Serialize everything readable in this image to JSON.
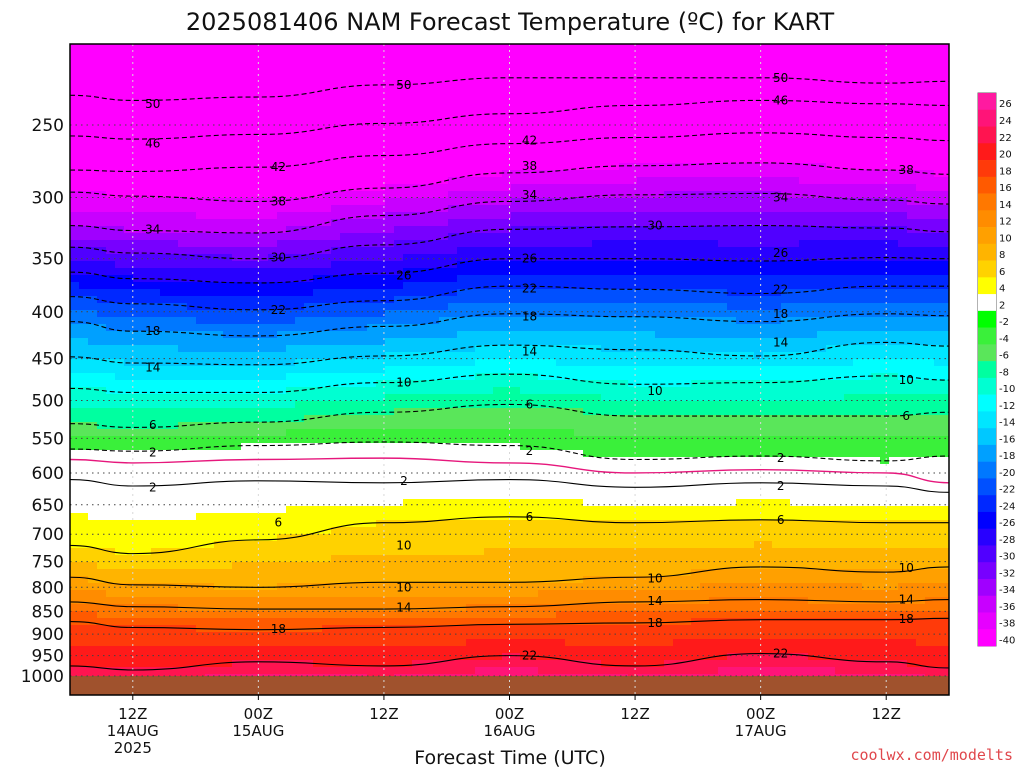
{
  "chart_data": {
    "type": "heatmap",
    "title": "2025081406 NAM Forecast Temperature (ºC) for KART",
    "xlabel": "Forecast Time (UTC)",
    "ylabel": "",
    "credit": "coolwx.com/modelts",
    "y_scale": "log-pressure",
    "y_range": [
      1000,
      200
    ],
    "y_ticks": [
      250,
      300,
      350,
      400,
      450,
      500,
      550,
      600,
      650,
      700,
      750,
      800,
      850,
      900,
      950,
      1000
    ],
    "x_ticks": [
      {
        "time": "2025-08-14T12Z",
        "lines": [
          "12Z",
          "14AUG",
          "2025"
        ]
      },
      {
        "time": "2025-08-15T00Z",
        "lines": [
          "00Z",
          "15AUG"
        ]
      },
      {
        "time": "2025-08-15T12Z",
        "lines": [
          "12Z"
        ]
      },
      {
        "time": "2025-08-16T00Z",
        "lines": [
          "00Z",
          "16AUG"
        ]
      },
      {
        "time": "2025-08-16T12Z",
        "lines": [
          "12Z"
        ]
      },
      {
        "time": "2025-08-17T00Z",
        "lines": [
          "00Z",
          "17AUG"
        ]
      },
      {
        "time": "2025-08-17T12Z",
        "lines": [
          "12Z"
        ]
      }
    ],
    "x_range": [
      "2025-08-14T06Z",
      "2025-08-17T18Z"
    ],
    "grid": true,
    "ground": {
      "below_pressure": 1000,
      "color": "#a0522d"
    },
    "colorbar": {
      "position": "right",
      "ticks": [
        "26",
        "24",
        "22",
        "20",
        "18",
        "16",
        "14",
        "12",
        "10",
        "8",
        "6",
        "4",
        "2",
        "-2",
        "-4",
        "-6",
        "-8",
        "-10",
        "-12",
        "-14",
        "-16",
        "-18",
        "-20",
        "-22",
        "-24",
        "-26",
        "-28",
        "-30",
        "-32",
        "-34",
        "-36",
        "-38",
        "-40"
      ],
      "colors": [
        "#ff1aa0",
        "#ff1478",
        "#ff1450",
        "#ff1a1a",
        "#ff3a0a",
        "#ff5a00",
        "#ff7800",
        "#ff8c00",
        "#ffa000",
        "#ffb400",
        "#ffd200",
        "#ffff00",
        "#ffffff",
        "#00ff00",
        "#3af03a",
        "#5ae65a",
        "#00ffa0",
        "#00ffd2",
        "#00ffff",
        "#00e6ff",
        "#00c8ff",
        "#00a0ff",
        "#0078ff",
        "#0050ff",
        "#0028ff",
        "#0000ff",
        "#2800ff",
        "#5000ff",
        "#7800ff",
        "#a000ff",
        "#c800ff",
        "#e600ff",
        "#ff00ff"
      ]
    },
    "series": [
      {
        "name": "",
        "level": -50,
        "style": "dashed",
        "x": [
          "2025-08-14T06Z",
          "2025-08-14T12Z",
          "2025-08-15T00Z",
          "2025-08-15T12Z",
          "2025-08-16T00Z",
          "2025-08-16T12Z",
          "2025-08-17T00Z",
          "2025-08-17T12Z",
          "2025-08-17T18Z"
        ],
        "y": [
          232,
          235,
          233,
          226,
          222,
          222,
          222,
          225,
          224
        ]
      },
      {
        "name": "",
        "level": -46,
        "style": "dashed",
        "x": [
          "2025-08-14T06Z",
          "2025-08-14T12Z",
          "2025-08-15T00Z",
          "2025-08-15T12Z",
          "2025-08-16T00Z",
          "2025-08-16T12Z",
          "2025-08-17T00Z",
          "2025-08-17T12Z",
          "2025-08-17T18Z"
        ],
        "y": [
          257,
          259,
          256,
          249,
          243,
          238,
          235,
          237,
          238
        ]
      },
      {
        "name": "",
        "level": -42,
        "style": "dashed",
        "x": [
          "2025-08-14T06Z",
          "2025-08-14T12Z",
          "2025-08-15T00Z",
          "2025-08-15T12Z",
          "2025-08-16T00Z",
          "2025-08-16T12Z",
          "2025-08-17T00Z",
          "2025-08-17T12Z",
          "2025-08-17T18Z"
        ],
        "y": [
          280,
          281,
          278,
          270,
          262,
          258,
          255,
          258,
          260
        ]
      },
      {
        "name": "",
        "level": -38,
        "style": "dashed",
        "x": [
          "2025-08-14T06Z",
          "2025-08-14T12Z",
          "2025-08-15T00Z",
          "2025-08-15T12Z",
          "2025-08-16T00Z",
          "2025-08-16T12Z",
          "2025-08-17T00Z",
          "2025-08-17T12Z",
          "2025-08-17T18Z"
        ],
        "y": [
          296,
          299,
          303,
          293,
          282,
          277,
          275,
          280,
          283
        ]
      },
      {
        "name": "",
        "level": -34,
        "style": "dashed",
        "x": [
          "2025-08-14T06Z",
          "2025-08-14T12Z",
          "2025-08-15T00Z",
          "2025-08-15T12Z",
          "2025-08-16T00Z",
          "2025-08-16T12Z",
          "2025-08-17T00Z",
          "2025-08-17T12Z",
          "2025-08-17T18Z"
        ],
        "y": [
          322,
          326,
          328,
          314,
          303,
          298,
          297,
          302,
          305
        ]
      },
      {
        "name": "",
        "level": -30,
        "style": "dashed",
        "x": [
          "2025-08-14T06Z",
          "2025-08-14T12Z",
          "2025-08-15T00Z",
          "2025-08-15T12Z",
          "2025-08-16T00Z",
          "2025-08-16T12Z",
          "2025-08-17T00Z",
          "2025-08-17T12Z",
          "2025-08-17T18Z"
        ],
        "y": [
          340,
          345,
          350,
          338,
          325,
          323,
          322,
          324,
          327
        ]
      },
      {
        "name": "",
        "level": -26,
        "style": "dashed",
        "x": [
          "2025-08-14T06Z",
          "2025-08-14T12Z",
          "2025-08-15T00Z",
          "2025-08-15T12Z",
          "2025-08-16T00Z",
          "2025-08-16T12Z",
          "2025-08-17T00Z",
          "2025-08-17T12Z",
          "2025-08-17T18Z"
        ],
        "y": [
          362,
          368,
          372,
          363,
          350,
          350,
          352,
          349,
          350
        ]
      },
      {
        "name": "",
        "level": -22,
        "style": "dashed",
        "x": [
          "2025-08-14T06Z",
          "2025-08-14T12Z",
          "2025-08-15T00Z",
          "2025-08-15T12Z",
          "2025-08-16T00Z",
          "2025-08-16T12Z",
          "2025-08-17T00Z",
          "2025-08-17T12Z",
          "2025-08-17T18Z"
        ],
        "y": [
          385,
          392,
          398,
          389,
          375,
          378,
          382,
          375,
          375
        ]
      },
      {
        "name": "",
        "level": -18,
        "style": "dashed",
        "x": [
          "2025-08-14T06Z",
          "2025-08-14T12Z",
          "2025-08-15T00Z",
          "2025-08-15T12Z",
          "2025-08-16T00Z",
          "2025-08-16T12Z",
          "2025-08-17T00Z",
          "2025-08-17T12Z",
          "2025-08-17T18Z"
        ],
        "y": [
          410,
          420,
          425,
          415,
          402,
          405,
          410,
          402,
          404
        ]
      },
      {
        "name": "",
        "level": -14,
        "style": "dashed",
        "x": [
          "2025-08-14T06Z",
          "2025-08-14T12Z",
          "2025-08-15T00Z",
          "2025-08-15T12Z",
          "2025-08-16T00Z",
          "2025-08-16T12Z",
          "2025-08-17T00Z",
          "2025-08-17T12Z",
          "2025-08-17T18Z"
        ],
        "y": [
          448,
          455,
          457,
          447,
          435,
          440,
          447,
          432,
          436
        ]
      },
      {
        "name": "",
        "level": -10,
        "style": "dashed",
        "x": [
          "2025-08-14T06Z",
          "2025-08-14T12Z",
          "2025-08-15T00Z",
          "2025-08-15T12Z",
          "2025-08-16T00Z",
          "2025-08-16T12Z",
          "2025-08-17T00Z",
          "2025-08-17T12Z",
          "2025-08-17T18Z"
        ],
        "y": [
          485,
          490,
          490,
          478,
          468,
          480,
          478,
          470,
          475
        ]
      },
      {
        "name": "",
        "level": -6,
        "style": "dashed",
        "x": [
          "2025-08-14T06Z",
          "2025-08-14T12Z",
          "2025-08-15T00Z",
          "2025-08-15T12Z",
          "2025-08-16T00Z",
          "2025-08-16T12Z",
          "2025-08-17T00Z",
          "2025-08-17T12Z",
          "2025-08-17T18Z"
        ],
        "y": [
          530,
          535,
          528,
          515,
          505,
          520,
          520,
          520,
          515
        ]
      },
      {
        "name": "",
        "level": -2,
        "style": "dashed",
        "x": [
          "2025-08-14T06Z",
          "2025-08-14T12Z",
          "2025-08-15T00Z",
          "2025-08-15T12Z",
          "2025-08-16T00Z",
          "2025-08-16T12Z",
          "2025-08-17T00Z",
          "2025-08-17T12Z",
          "2025-08-17T18Z"
        ],
        "y": [
          565,
          568,
          560,
          555,
          560,
          580,
          575,
          582,
          575
        ]
      },
      {
        "name": "",
        "level": 0,
        "style": "pink",
        "x": [
          "2025-08-14T06Z",
          "2025-08-14T12Z",
          "2025-08-15T00Z",
          "2025-08-15T12Z",
          "2025-08-16T00Z",
          "2025-08-16T12Z",
          "2025-08-17T00Z",
          "2025-08-17T12Z",
          "2025-08-17T18Z"
        ],
        "y": [
          580,
          585,
          580,
          578,
          585,
          600,
          595,
          600,
          615
        ]
      },
      {
        "name": "",
        "level": 2,
        "style": "solid",
        "x": [
          "2025-08-14T06Z",
          "2025-08-14T12Z",
          "2025-08-15T00Z",
          "2025-08-15T12Z",
          "2025-08-16T00Z",
          "2025-08-16T12Z",
          "2025-08-17T00Z",
          "2025-08-17T12Z",
          "2025-08-17T18Z"
        ],
        "y": [
          610,
          620,
          612,
          615,
          610,
          622,
          615,
          620,
          630
        ]
      },
      {
        "name": "",
        "level": 6,
        "style": "solid",
        "x": [
          "2025-08-14T06Z",
          "2025-08-14T12Z",
          "2025-08-15T00Z",
          "2025-08-15T12Z",
          "2025-08-16T00Z",
          "2025-08-16T12Z",
          "2025-08-17T00Z",
          "2025-08-17T12Z",
          "2025-08-17T18Z"
        ],
        "y": [
          720,
          735,
          710,
          680,
          670,
          680,
          675,
          680,
          680
        ]
      },
      {
        "name": "",
        "level": 10,
        "style": "solid",
        "x": [
          "2025-08-14T06Z",
          "2025-08-14T12Z",
          "2025-08-15T00Z",
          "2025-08-15T12Z",
          "2025-08-16T00Z",
          "2025-08-16T12Z",
          "2025-08-17T00Z",
          "2025-08-17T12Z",
          "2025-08-17T18Z"
        ],
        "y": [
          780,
          795,
          800,
          790,
          790,
          780,
          760,
          770,
          760
        ]
      },
      {
        "name": "",
        "level": 14,
        "style": "solid",
        "x": [
          "2025-08-14T06Z",
          "2025-08-14T12Z",
          "2025-08-15T00Z",
          "2025-08-15T12Z",
          "2025-08-16T00Z",
          "2025-08-16T12Z",
          "2025-08-17T00Z",
          "2025-08-17T12Z",
          "2025-08-17T18Z"
        ],
        "y": [
          830,
          840,
          845,
          845,
          840,
          830,
          825,
          830,
          825
        ]
      },
      {
        "name": "",
        "level": 18,
        "style": "solid",
        "x": [
          "2025-08-14T06Z",
          "2025-08-14T12Z",
          "2025-08-15T00Z",
          "2025-08-15T12Z",
          "2025-08-16T00Z",
          "2025-08-16T12Z",
          "2025-08-17T00Z",
          "2025-08-17T12Z",
          "2025-08-17T18Z"
        ],
        "y": [
          872,
          885,
          890,
          885,
          878,
          875,
          868,
          868,
          865
        ]
      },
      {
        "name": "",
        "level": 22,
        "style": "solid",
        "x": [
          "2025-08-14T06Z",
          "2025-08-14T12Z",
          "2025-08-15T00Z",
          "2025-08-15T12Z",
          "2025-08-16T00Z",
          "2025-08-16T12Z",
          "2025-08-17T00Z",
          "2025-08-17T12Z",
          "2025-08-17T18Z"
        ],
        "y": [
          975,
          985,
          965,
          975,
          950,
          975,
          945,
          965,
          980
        ]
      }
    ],
    "contour_labels": [
      {
        "text": "50",
        "x": "2025-08-14T12Z",
        "y": 237
      },
      {
        "text": "50",
        "x": "2025-08-15T12Z",
        "y": 226
      },
      {
        "text": "50",
        "x": "2025-08-17T00Z",
        "y": 222
      },
      {
        "text": "46",
        "x": "2025-08-14T12Z",
        "y": 262
      },
      {
        "text": "46",
        "x": "2025-08-17T00Z",
        "y": 235
      },
      {
        "text": "42",
        "x": "2025-08-15T00Z",
        "y": 278
      },
      {
        "text": "42",
        "x": "2025-08-16T00Z",
        "y": 260
      },
      {
        "text": "38",
        "x": "2025-08-15T00Z",
        "y": 303
      },
      {
        "text": "38",
        "x": "2025-08-16T00Z",
        "y": 277
      },
      {
        "text": "38",
        "x": "2025-08-17T12Z",
        "y": 280
      },
      {
        "text": "34",
        "x": "2025-08-14T12Z",
        "y": 325
      },
      {
        "text": "34",
        "x": "2025-08-16T00Z",
        "y": 298
      },
      {
        "text": "34",
        "x": "2025-08-17T00Z",
        "y": 300
      },
      {
        "text": "30",
        "x": "2025-08-15T00Z",
        "y": 349
      },
      {
        "text": "30",
        "x": "2025-08-16T12Z",
        "y": 322
      },
      {
        "text": "26",
        "x": "2025-08-15T12Z",
        "y": 365
      },
      {
        "text": "26",
        "x": "2025-08-16T00Z",
        "y": 350
      },
      {
        "text": "26",
        "x": "2025-08-17T00Z",
        "y": 345
      },
      {
        "text": "22",
        "x": "2025-08-15T00Z",
        "y": 398
      },
      {
        "text": "22",
        "x": "2025-08-16T00Z",
        "y": 377
      },
      {
        "text": "22",
        "x": "2025-08-17T00Z",
        "y": 378
      },
      {
        "text": "18",
        "x": "2025-08-14T12Z",
        "y": 420
      },
      {
        "text": "18",
        "x": "2025-08-16T00Z",
        "y": 405
      },
      {
        "text": "18",
        "x": "2025-08-17T00Z",
        "y": 402
      },
      {
        "text": "14",
        "x": "2025-08-14T12Z",
        "y": 460
      },
      {
        "text": "14",
        "x": "2025-08-16T00Z",
        "y": 442
      },
      {
        "text": "14",
        "x": "2025-08-17T00Z",
        "y": 432
      },
      {
        "text": "10",
        "x": "2025-08-15T12Z",
        "y": 478
      },
      {
        "text": "10",
        "x": "2025-08-16T12Z",
        "y": 488
      },
      {
        "text": "10",
        "x": "2025-08-17T12Z",
        "y": 475
      },
      {
        "text": "6",
        "x": "2025-08-14T12Z",
        "y": 532
      },
      {
        "text": "6",
        "x": "2025-08-16T00Z",
        "y": 505
      },
      {
        "text": "6",
        "x": "2025-08-17T12Z",
        "y": 520
      },
      {
        "text": "2",
        "x": "2025-08-14T12Z",
        "y": 570
      },
      {
        "text": "2",
        "x": "2025-08-16T00Z",
        "y": 568
      },
      {
        "text": "2",
        "x": "2025-08-17T00Z",
        "y": 578
      },
      {
        "text": "2",
        "x": "2025-08-14T12Z",
        "y": 622
      },
      {
        "text": "2",
        "x": "2025-08-15T12Z",
        "y": 612
      },
      {
        "text": "2",
        "x": "2025-08-17T00Z",
        "y": 620
      },
      {
        "text": "6",
        "x": "2025-08-15T00Z",
        "y": 680
      },
      {
        "text": "6",
        "x": "2025-08-16T00Z",
        "y": 670
      },
      {
        "text": "6",
        "x": "2025-08-17T00Z",
        "y": 675
      },
      {
        "text": "10",
        "x": "2025-08-15T12Z",
        "y": 720
      },
      {
        "text": "10",
        "x": "2025-08-15T12Z",
        "y": 800
      },
      {
        "text": "10",
        "x": "2025-08-16T12Z",
        "y": 782
      },
      {
        "text": "10",
        "x": "2025-08-17T12Z",
        "y": 762
      },
      {
        "text": "14",
        "x": "2025-08-15T12Z",
        "y": 842
      },
      {
        "text": "14",
        "x": "2025-08-16T12Z",
        "y": 828
      },
      {
        "text": "14",
        "x": "2025-08-17T12Z",
        "y": 825
      },
      {
        "text": "18",
        "x": "2025-08-15T00Z",
        "y": 888
      },
      {
        "text": "18",
        "x": "2025-08-16T12Z",
        "y": 875
      },
      {
        "text": "18",
        "x": "2025-08-17T12Z",
        "y": 866
      },
      {
        "text": "22",
        "x": "2025-08-16T00Z",
        "y": 950
      },
      {
        "text": "22",
        "x": "2025-08-17T00Z",
        "y": 945
      }
    ]
  }
}
